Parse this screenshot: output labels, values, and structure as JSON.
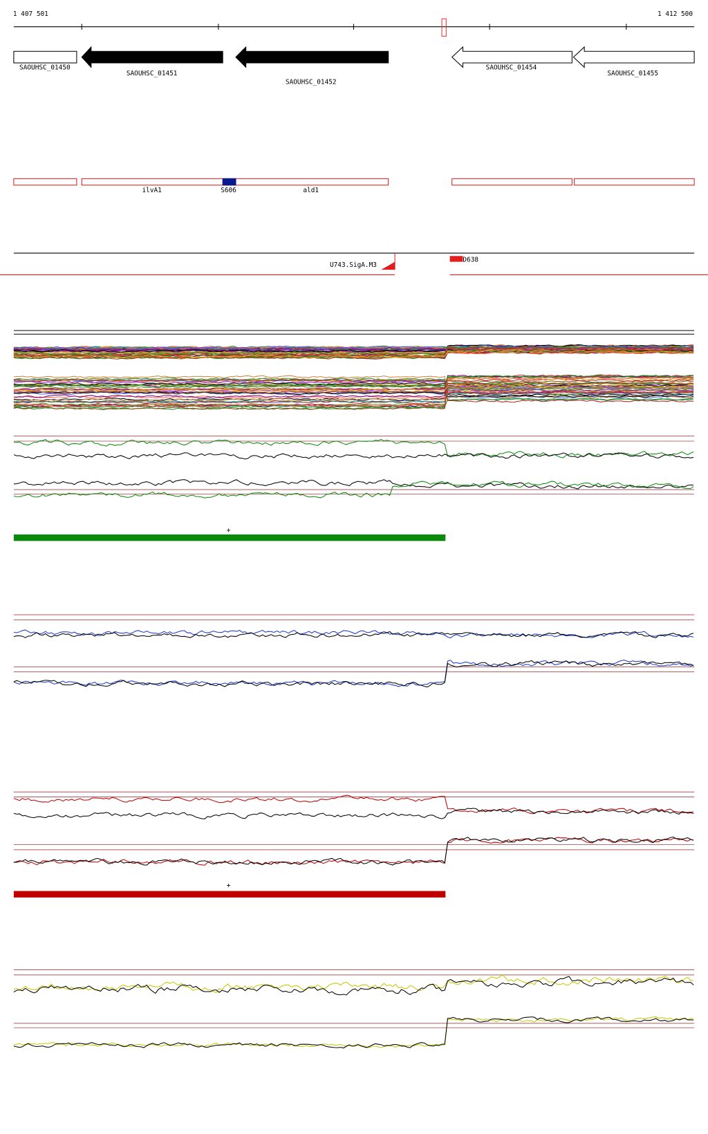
{
  "ruler": {
    "start": "1 407 501",
    "end": "1 412 500"
  },
  "genes": [
    {
      "label": "SAOUHSC_01450"
    },
    {
      "label": "SAOUHSC_01451"
    },
    {
      "label": "SAOUHSC_01452"
    },
    {
      "label": "SAOUHSC_01454"
    },
    {
      "label": "SAOUHSC_01455"
    }
  ],
  "features": [
    {
      "label": "ilvA1"
    },
    {
      "label": "S606"
    },
    {
      "label": "ald1"
    }
  ],
  "promoters": [
    {
      "label": "U743.SigA.M3"
    },
    {
      "label": "D638"
    }
  ],
  "strand_marks": [
    "+",
    "+"
  ]
}
